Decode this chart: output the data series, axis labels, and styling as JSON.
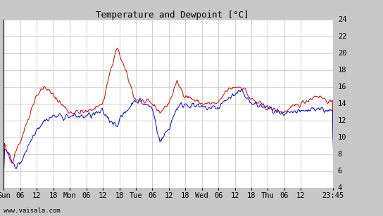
{
  "title": "Temperature and Dewpoint [°C]",
  "background_color": "#c8c8c8",
  "plot_bg_color": "#ffffff",
  "grid_color": "#c8c8c8",
  "red_color": "#cc0000",
  "blue_color": "#0000cc",
  "ylim": [
    4,
    24
  ],
  "yticks": [
    4,
    6,
    8,
    10,
    12,
    14,
    16,
    18,
    20,
    22,
    24
  ],
  "xtick_labels": [
    "Sun",
    "06",
    "12",
    "18",
    "Mon",
    "06",
    "12",
    "18",
    "Tue",
    "06",
    "12",
    "18",
    "Wed",
    "06",
    "12",
    "18",
    "Thu",
    "06",
    "12",
    "23:45"
  ],
  "watermark": "www.vaisala.com",
  "title_fontsize": 9,
  "tick_fontsize": 7.5,
  "watermark_fontsize": 6.5,
  "line_width": 0.7,
  "n_points": 480,
  "xtick_positions": [
    0,
    24,
    48,
    72,
    96,
    120,
    144,
    168,
    192,
    216,
    240,
    264,
    288,
    312,
    336,
    360,
    384,
    408,
    432,
    479
  ]
}
